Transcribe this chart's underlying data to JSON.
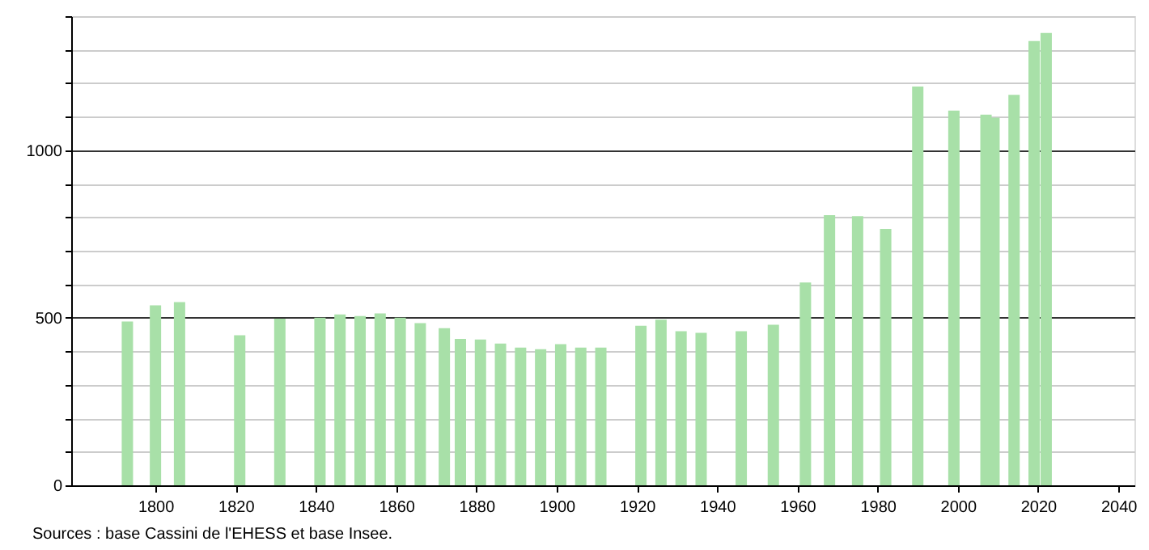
{
  "chart_data": {
    "type": "bar",
    "x": [
      1793,
      1800,
      1806,
      1821,
      1831,
      1841,
      1846,
      1851,
      1856,
      1861,
      1866,
      1872,
      1876,
      1881,
      1886,
      1891,
      1896,
      1901,
      1906,
      1911,
      1921,
      1926,
      1931,
      1936,
      1946,
      1954,
      1962,
      1968,
      1975,
      1982,
      1990,
      1999,
      2007,
      2009,
      2014,
      2019,
      2022
    ],
    "values": [
      489,
      537,
      547,
      448,
      497,
      500,
      510,
      505,
      513,
      500,
      484,
      469,
      437,
      435,
      423,
      411,
      406,
      421,
      411,
      411,
      476,
      494,
      460,
      455,
      460,
      479,
      605,
      806,
      803,
      765,
      1190,
      1118,
      1106,
      1097,
      1165,
      1326,
      1350
    ],
    "color": "#a8e0a8",
    "xlim": [
      1779,
      2044
    ],
    "xticks": [
      1800,
      1820,
      1840,
      1860,
      1880,
      1900,
      1920,
      1940,
      1960,
      1980,
      2000,
      2020,
      2040
    ],
    "ylim": [
      0,
      1400
    ],
    "yticks": [
      0,
      {
        "value": 100,
        "label": null
      },
      {
        "value": 200,
        "label": null
      },
      {
        "value": 300,
        "label": null
      },
      {
        "value": 400,
        "label": null
      },
      500,
      {
        "value": 600,
        "label": null
      },
      {
        "value": 700,
        "label": null
      },
      {
        "value": 800,
        "label": null
      },
      {
        "value": 900,
        "label": null
      },
      1000,
      {
        "value": 1100,
        "label": null
      },
      {
        "value": 1200,
        "label": null
      },
      {
        "value": 1300,
        "label": null
      },
      {
        "value": 1400,
        "label": null
      }
    ],
    "grid": "y",
    "annotations": [
      "Sources : base Cassini de l'EHESS et base Insee."
    ]
  }
}
